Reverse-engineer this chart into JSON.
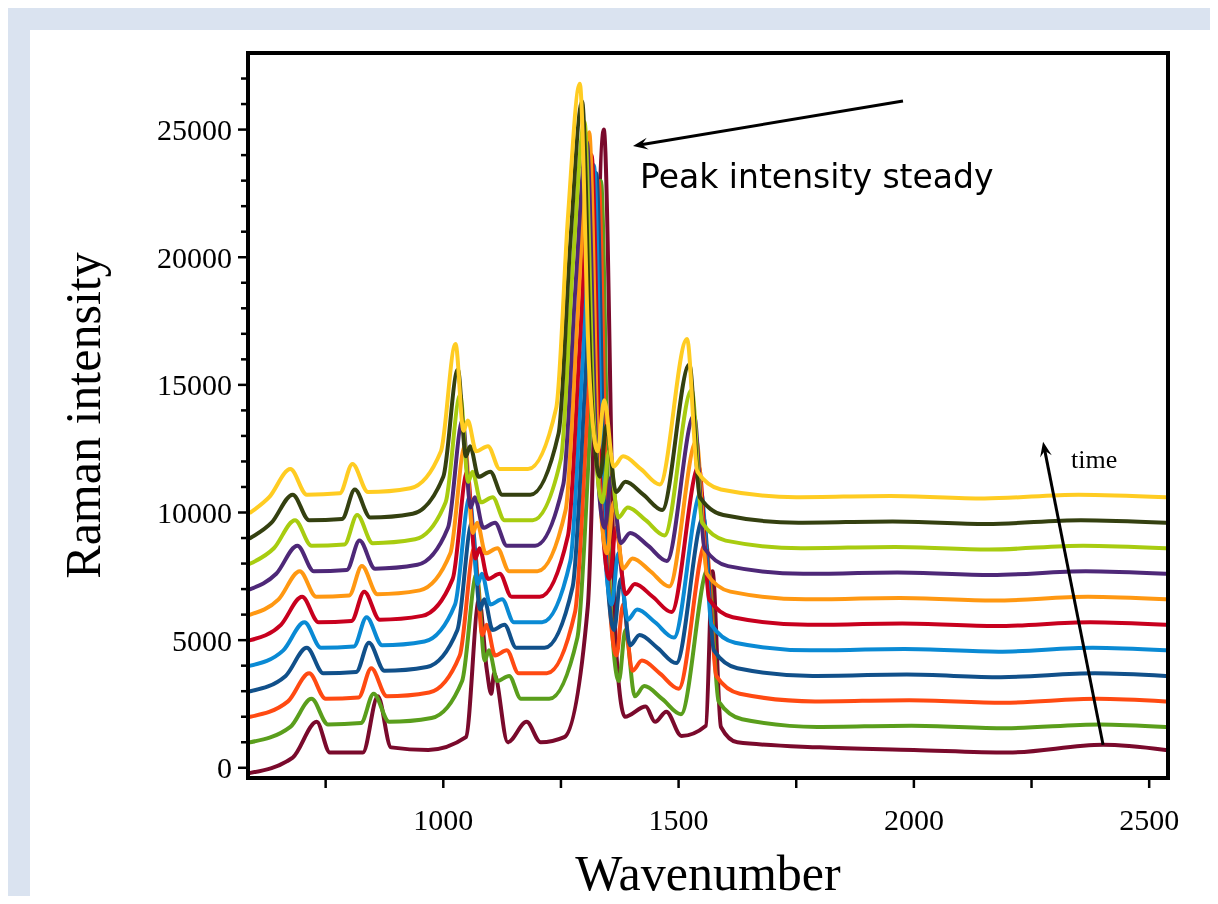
{
  "chart_data": {
    "type": "line",
    "xlabel": "Wavenumber",
    "ylabel": "Raman intensity",
    "xlim": [
      585,
      2540
    ],
    "ylim": [
      -400,
      28000
    ],
    "xticks": [
      {
        "value": 750,
        "label": null
      },
      1000,
      {
        "value": 1250,
        "label": null
      },
      1500,
      {
        "value": 1750,
        "label": null
      },
      2000,
      {
        "value": 2250,
        "label": null
      },
      2500
    ],
    "yticks": [
      0,
      {
        "value": 1000,
        "label": null
      },
      {
        "value": 2000,
        "label": null
      },
      {
        "value": 3000,
        "label": null
      },
      {
        "value": 4000,
        "label": null
      },
      5000,
      {
        "value": 6000,
        "label": null
      },
      {
        "value": 7000,
        "label": null
      },
      {
        "value": 8000,
        "label": null
      },
      {
        "value": 9000,
        "label": null
      },
      10000,
      {
        "value": 11000,
        "label": null
      },
      {
        "value": 12000,
        "label": null
      },
      {
        "value": 13000,
        "label": null
      },
      {
        "value": 14000,
        "label": null
      },
      15000,
      {
        "value": 16000,
        "label": null
      },
      {
        "value": 17000,
        "label": null
      },
      {
        "value": 18000,
        "label": null
      },
      {
        "value": 19000,
        "label": null
      },
      20000,
      {
        "value": 21000,
        "label": null
      },
      {
        "value": 22000,
        "label": null
      },
      {
        "value": 23000,
        "label": null
      },
      {
        "value": 24000,
        "label": null
      },
      25000,
      {
        "value": 26000,
        "label": null
      },
      {
        "value": 27000,
        "label": null
      }
    ],
    "grid": false,
    "marker": "none",
    "line_style": "solid",
    "annotations": [
      "Peak intensity steady",
      {
        "text": "time",
        "x": 2402,
        "y": 900
      }
    ],
    "series": [
      {
        "color": "#7a0a2c",
        "x": [
          590,
          680,
          731,
          759,
          829,
          861,
          889,
          968,
          1048,
          1076,
          1092,
          1102,
          1108,
          1137,
          1177,
          1207,
          1257,
          1307,
          1341,
          1367,
          1386,
          1430,
          1450,
          1474,
          1506,
          1558,
          1572,
          1590,
          1625,
          1800,
          2000,
          2200,
          2402,
          2535
        ],
        "values": [
          -200,
          400,
          1800,
          600,
          600,
          2800,
          800,
          700,
          1200,
          6600,
          3900,
          2900,
          3700,
          1000,
          1800,
          1000,
          1200,
          6300,
          25000,
          4700,
          2000,
          2400,
          1800,
          2200,
          1250,
          1650,
          7700,
          1600,
          1000,
          800,
          700,
          600,
          900,
          700
        ]
      },
      {
        "color": "#5a9e1c",
        "x": [
          590,
          675,
          720,
          755,
          825,
          852,
          885,
          975,
          1040,
          1071,
          1088,
          1097,
          1115,
          1140,
          1165,
          1225,
          1285,
          1310,
          1335,
          1355,
          1373,
          1387,
          1407,
          1427,
          1465,
          1505,
          1563,
          1585,
          1635,
          1795,
          1995,
          2195,
          2395,
          2535
        ],
        "values": [
          1000,
          1600,
          2700,
          1700,
          1750,
          2900,
          1800,
          1950,
          3400,
          7600,
          4200,
          4600,
          3400,
          3600,
          2700,
          2700,
          5100,
          12600,
          23000,
          6600,
          3400,
          5400,
          2800,
          3200,
          2700,
          2100,
          7800,
          2600,
          1900,
          1600,
          1650,
          1550,
          1700,
          1600
        ]
      },
      {
        "color": "#ff4a12",
        "x": [
          590,
          670,
          715,
          750,
          820,
          847,
          880,
          970,
          1035,
          1066,
          1083,
          1092,
          1110,
          1135,
          1160,
          1220,
          1280,
          1305,
          1330,
          1350,
          1368,
          1382,
          1402,
          1422,
          1460,
          1500,
          1558,
          1580,
          1630,
          1790,
          1990,
          2190,
          2390,
          2535
        ],
        "values": [
          2000,
          2600,
          3700,
          2700,
          2750,
          3900,
          2800,
          2950,
          4400,
          8600,
          5200,
          5600,
          4400,
          4600,
          3700,
          3700,
          6100,
          13600,
          23000,
          7600,
          4400,
          6400,
          3800,
          4200,
          3700,
          3100,
          8800,
          3600,
          2900,
          2600,
          2650,
          2550,
          2700,
          2600
        ]
      },
      {
        "color": "#11508a",
        "x": [
          590,
          665,
          710,
          745,
          815,
          842,
          875,
          965,
          1030,
          1061,
          1078,
          1087,
          1105,
          1130,
          1155,
          1215,
          1275,
          1300,
          1325,
          1345,
          1363,
          1377,
          1397,
          1417,
          1455,
          1495,
          1553,
          1575,
          1625,
          1785,
          1985,
          2185,
          2385,
          2535
        ],
        "values": [
          3000,
          3600,
          4700,
          3700,
          3750,
          4900,
          3800,
          3950,
          5400,
          9600,
          6200,
          6600,
          5400,
          5600,
          4700,
          4700,
          7100,
          14600,
          23300,
          8600,
          5400,
          7400,
          4800,
          5200,
          4700,
          4100,
          9800,
          4600,
          3900,
          3600,
          3650,
          3550,
          3700,
          3600
        ]
      },
      {
        "color": "#0a8ad4",
        "x": [
          590,
          660,
          705,
          740,
          810,
          837,
          870,
          960,
          1025,
          1056,
          1073,
          1082,
          1100,
          1125,
          1150,
          1210,
          1270,
          1295,
          1320,
          1340,
          1358,
          1372,
          1392,
          1412,
          1450,
          1490,
          1548,
          1570,
          1620,
          1780,
          1980,
          2180,
          2380,
          2535
        ],
        "values": [
          4000,
          4600,
          5700,
          4700,
          4750,
          5900,
          4800,
          4950,
          6400,
          10600,
          7200,
          7600,
          6400,
          6600,
          5700,
          5700,
          8100,
          15600,
          23600,
          9600,
          6400,
          8400,
          5800,
          6200,
          5700,
          5100,
          10800,
          5600,
          4900,
          4600,
          4650,
          4550,
          4700,
          4600
        ]
      },
      {
        "color": "#c8001e",
        "x": [
          590,
          655,
          700,
          735,
          805,
          832,
          865,
          955,
          1020,
          1051,
          1068,
          1077,
          1095,
          1120,
          1145,
          1205,
          1265,
          1290,
          1315,
          1335,
          1353,
          1367,
          1387,
          1407,
          1445,
          1485,
          1543,
          1565,
          1615,
          1775,
          1975,
          2175,
          2375,
          2535
        ],
        "values": [
          5000,
          5600,
          6700,
          5700,
          5750,
          6900,
          5800,
          5950,
          7400,
          11600,
          8200,
          8600,
          7400,
          7600,
          6700,
          6700,
          9100,
          16600,
          24000,
          10600,
          7400,
          9400,
          6800,
          7200,
          6700,
          6100,
          11800,
          6600,
          5900,
          5600,
          5650,
          5550,
          5700,
          5600
        ]
      },
      {
        "color": "#ff9812",
        "x": [
          590,
          650,
          695,
          730,
          800,
          827,
          860,
          950,
          1015,
          1046,
          1063,
          1072,
          1090,
          1115,
          1140,
          1200,
          1260,
          1285,
          1310,
          1330,
          1348,
          1362,
          1382,
          1402,
          1440,
          1480,
          1538,
          1560,
          1610,
          1770,
          1970,
          2170,
          2370,
          2535
        ],
        "values": [
          6000,
          6600,
          7700,
          6700,
          6750,
          7900,
          6800,
          6950,
          8400,
          12600,
          9200,
          9600,
          8400,
          8600,
          7700,
          7700,
          10100,
          17600,
          24900,
          11600,
          8400,
          10400,
          7800,
          8200,
          7700,
          7100,
          12800,
          7600,
          6900,
          6600,
          6650,
          6550,
          6700,
          6600
        ]
      },
      {
        "color": "#4e2878",
        "x": [
          590,
          645,
          690,
          725,
          795,
          822,
          855,
          945,
          1010,
          1041,
          1058,
          1067,
          1085,
          1110,
          1135,
          1195,
          1255,
          1280,
          1305,
          1325,
          1343,
          1357,
          1377,
          1397,
          1435,
          1475,
          1533,
          1555,
          1605,
          1765,
          1965,
          2165,
          2365,
          2535
        ],
        "values": [
          7000,
          7600,
          8700,
          7700,
          7750,
          8900,
          7800,
          7950,
          9400,
          13600,
          10200,
          10600,
          9400,
          9600,
          8700,
          8700,
          11100,
          18600,
          24500,
          12600,
          9400,
          11400,
          8800,
          9200,
          8700,
          8100,
          13800,
          8600,
          7900,
          7600,
          7650,
          7550,
          7700,
          7600
        ]
      },
      {
        "color": "#a8cc10",
        "x": [
          590,
          640,
          685,
          720,
          790,
          817,
          850,
          940,
          1005,
          1036,
          1053,
          1062,
          1080,
          1105,
          1130,
          1190,
          1250,
          1275,
          1300,
          1320,
          1338,
          1352,
          1372,
          1392,
          1430,
          1470,
          1528,
          1550,
          1600,
          1760,
          1960,
          2160,
          2360,
          2535
        ],
        "values": [
          8000,
          8600,
          9700,
          8700,
          8750,
          9900,
          8800,
          8950,
          10400,
          14600,
          11200,
          11600,
          10400,
          10600,
          9700,
          9700,
          12100,
          19600,
          25300,
          13600,
          10400,
          12400,
          9800,
          10200,
          9700,
          9100,
          14800,
          9600,
          8900,
          8600,
          8650,
          8550,
          8700,
          8600
        ]
      },
      {
        "color": "#344010",
        "x": [
          590,
          635,
          680,
          715,
          785,
          812,
          845,
          935,
          1000,
          1031,
          1048,
          1057,
          1075,
          1100,
          1125,
          1185,
          1245,
          1270,
          1295,
          1315,
          1333,
          1347,
          1367,
          1387,
          1425,
          1465,
          1523,
          1545,
          1595,
          1755,
          1955,
          2155,
          2355,
          2535
        ],
        "values": [
          9000,
          9600,
          10700,
          9700,
          9750,
          10900,
          9800,
          9950,
          11400,
          15600,
          12200,
          12600,
          11400,
          11600,
          10700,
          10700,
          13100,
          20600,
          26100,
          14600,
          11400,
          13400,
          10800,
          11200,
          10700,
          10100,
          15800,
          10600,
          9900,
          9600,
          9650,
          9550,
          9700,
          9600
        ]
      },
      {
        "color": "#ffcc22",
        "x": [
          590,
          630,
          675,
          710,
          780,
          807,
          840,
          930,
          995,
          1026,
          1043,
          1052,
          1070,
          1095,
          1120,
          1180,
          1240,
          1265,
          1290,
          1310,
          1328,
          1342,
          1362,
          1382,
          1420,
          1460,
          1518,
          1540,
          1590,
          1750,
          1950,
          2150,
          2350,
          2535
        ],
        "values": [
          10000,
          10600,
          11700,
          10700,
          10750,
          11900,
          10800,
          10950,
          12400,
          16600,
          13200,
          13600,
          12400,
          12600,
          11700,
          11700,
          14100,
          21600,
          26800,
          15600,
          12400,
          14400,
          11800,
          12200,
          11700,
          11100,
          16800,
          11600,
          10900,
          10600,
          10650,
          10550,
          10700,
          10600
        ]
      }
    ]
  }
}
